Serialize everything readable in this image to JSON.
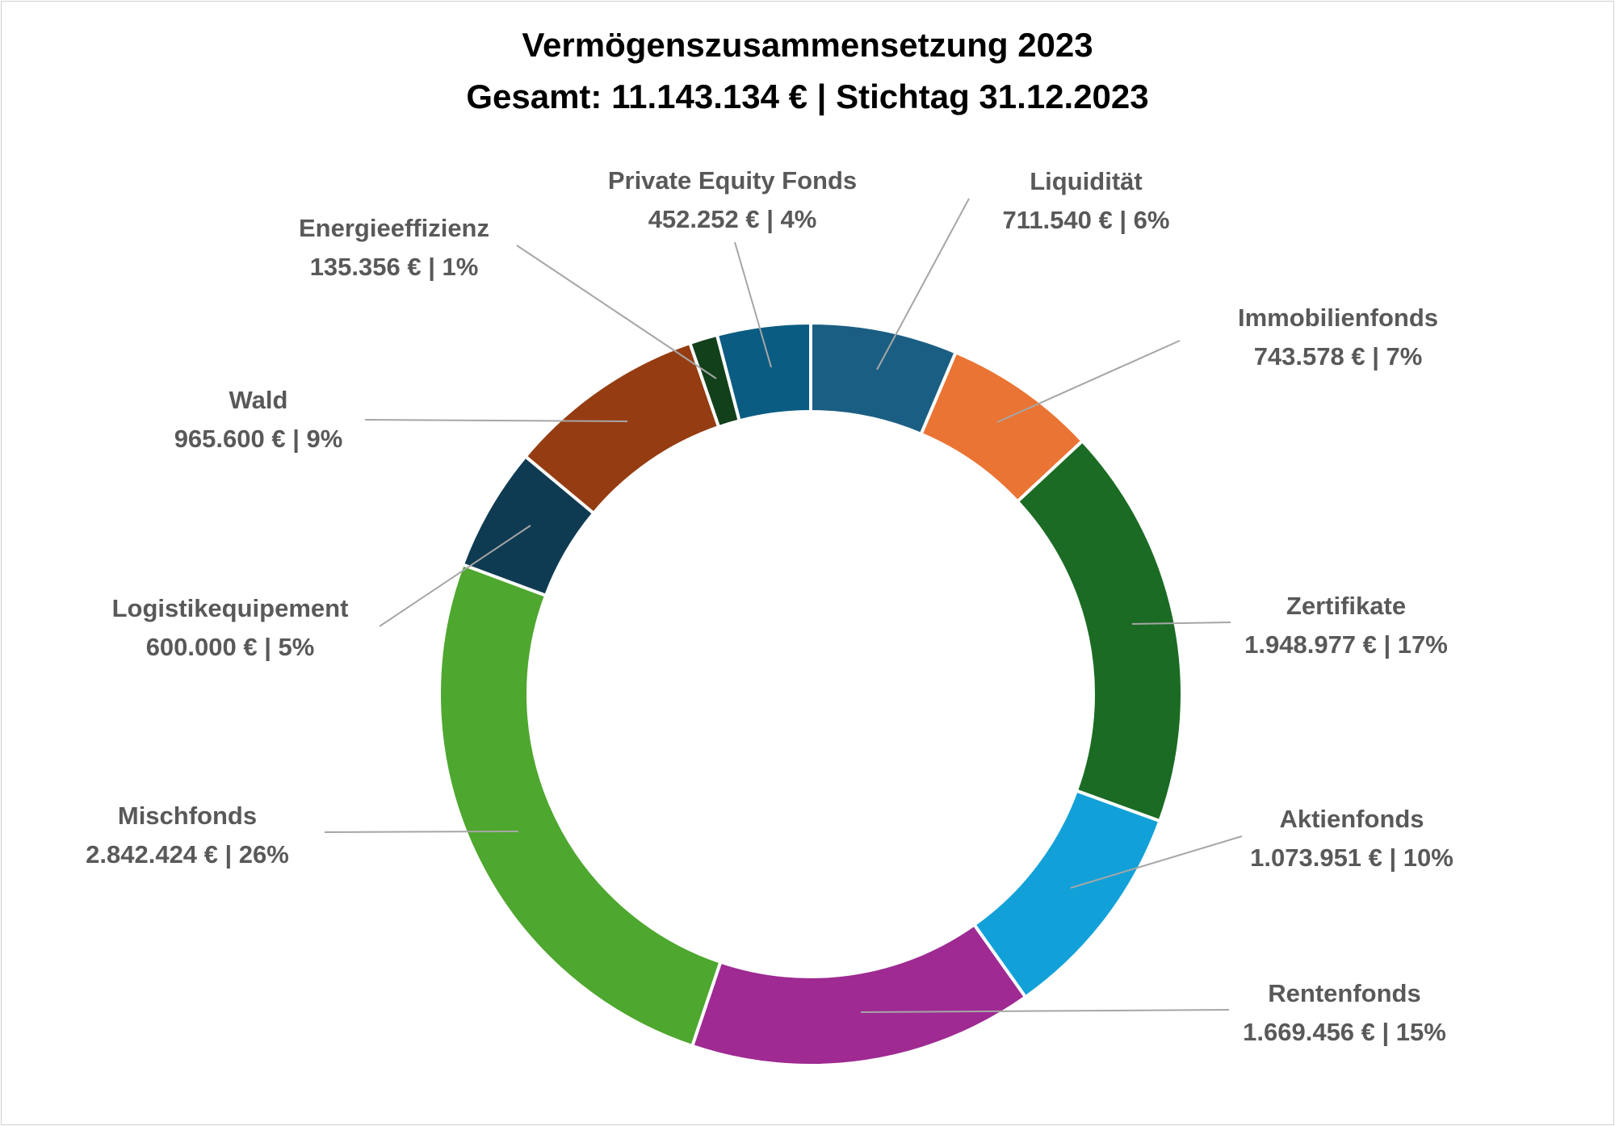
{
  "chart_data": {
    "type": "pie",
    "title": "Vermögenszusammensetzung 2023",
    "subtitle": "Gesamt: 11.143.134 € | Stichtag 31.12.2023",
    "series": [
      {
        "name": "Liquidität",
        "value": 711540,
        "label": "711.540 € | 6%",
        "color": "#1b5e83"
      },
      {
        "name": "Immobilienfonds",
        "value": 743578,
        "label": "743.578 € | 7%",
        "color": "#ea7433"
      },
      {
        "name": "Zertifikate",
        "value": 1948977,
        "label": "1.948.977 € | 17%",
        "color": "#1b6b24"
      },
      {
        "name": "Aktienfonds",
        "value": 1073951,
        "label": "1.073.951 € | 10%",
        "color": "#11a1d8"
      },
      {
        "name": "Rentenfonds",
        "value": 1669456,
        "label": "1.669.456 € | 15%",
        "color": "#9e2a92"
      },
      {
        "name": "Mischfonds",
        "value": 2842424,
        "label": "2.842.424 € | 26%",
        "color": "#4ea72e"
      },
      {
        "name": "Logistikequipement",
        "value": 600000,
        "label": "600.000 € | 5%",
        "color": "#0f3b52"
      },
      {
        "name": "Wald",
        "value": 965600,
        "label": "965.600 € | 9%",
        "color": "#953c12"
      },
      {
        "name": "Energieeffizienz",
        "value": 135356,
        "label": "135.356 € | 1%",
        "color": "#12401b"
      },
      {
        "name": "Private Equity Fonds",
        "value": 452252,
        "label": "452.252 € | 4%",
        "color": "#0b5c82"
      }
    ]
  }
}
